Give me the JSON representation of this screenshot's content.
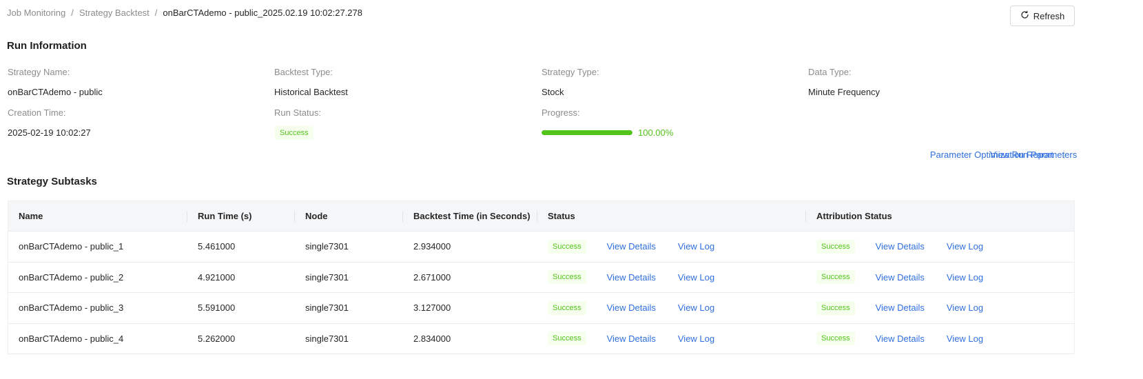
{
  "breadcrumb": {
    "items": [
      "Job Monitoring",
      "Strategy Backtest"
    ],
    "separator": "/",
    "current": "onBarCTAdemo - public_2025.02.19 10:02:27.278"
  },
  "refresh": {
    "label": "Refresh",
    "icon": "refresh-icon"
  },
  "run_info": {
    "title": "Run Information",
    "strategy_name": {
      "label": "Strategy Name:",
      "value": "onBarCTAdemo - public"
    },
    "backtest_type": {
      "label": "Backtest Type:",
      "value": "Historical Backtest"
    },
    "strategy_type": {
      "label": "Strategy Type:",
      "value": "Stock"
    },
    "data_type": {
      "label": "Data Type:",
      "value": "Minute Frequency"
    },
    "creation_time": {
      "label": "Creation Time:",
      "value": "2025-02-19 10:02:27"
    },
    "run_status": {
      "label": "Run Status:",
      "value": "Success"
    },
    "progress": {
      "label": "Progress:",
      "value": 1.0,
      "text": "100.00%"
    }
  },
  "links": {
    "param_report": "Parameter Optimization Report",
    "view_run_params": "View Run Parameters"
  },
  "subtasks": {
    "title": "Strategy Subtasks",
    "columns": [
      "Name",
      "Run Time (s)",
      "Node",
      "Backtest Time (in Seconds)",
      "Status",
      "Attribution Status"
    ],
    "rows": [
      {
        "name": "onBarCTAdemo - public_1",
        "run_time": "5.461000",
        "node": "single7301",
        "backtest_time": "2.934000",
        "status": "Success",
        "attr_status": "Success",
        "details": "View Details",
        "log": "View Log"
      },
      {
        "name": "onBarCTAdemo - public_2",
        "run_time": "4.921000",
        "node": "single7301",
        "backtest_time": "2.671000",
        "status": "Success",
        "attr_status": "Success",
        "details": "View Details",
        "log": "View Log"
      },
      {
        "name": "onBarCTAdemo - public_3",
        "run_time": "5.591000",
        "node": "single7301",
        "backtest_time": "3.127000",
        "status": "Success",
        "attr_status": "Success",
        "details": "View Details",
        "log": "View Log"
      },
      {
        "name": "onBarCTAdemo - public_4",
        "run_time": "5.262000",
        "node": "single7301",
        "backtest_time": "2.834000",
        "status": "Success",
        "attr_status": "Success",
        "details": "View Details",
        "log": "View Log"
      }
    ]
  },
  "colors": {
    "success": "#52c41a",
    "success_bg": "#f6ffed",
    "link": "#2f6fe0",
    "header_bg": "#f5f6f8"
  }
}
